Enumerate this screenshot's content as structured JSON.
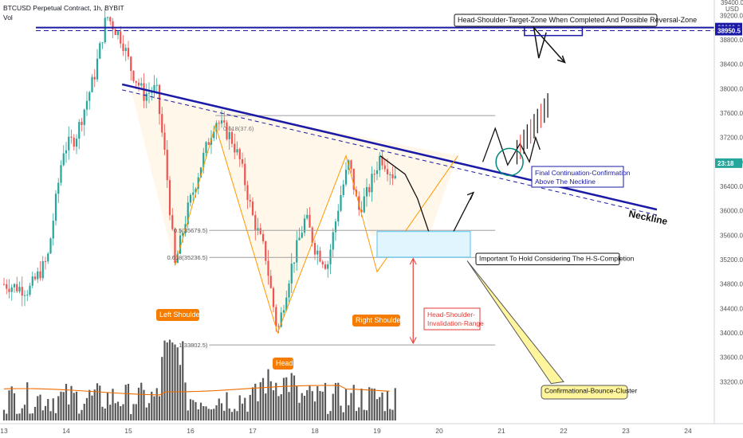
{
  "header": {
    "symbol_line": "BTCUSD Perpetual Contract, 1h, BYBIT",
    "vol_label": "Vol"
  },
  "y_axis": {
    "currency": "USD",
    "top_tick": "39400.0",
    "ticks": [
      "39200.0",
      "38800.0",
      "38400.0",
      "38000.0",
      "37600.0",
      "37200.0",
      "36800.0",
      "36400.0",
      "36000.0",
      "35600.0",
      "35200.0",
      "34800.0",
      "34400.0",
      "34000.0",
      "33600.0",
      "33200.0"
    ],
    "badges": [
      {
        "label": "39000.0",
        "bg": "#1a1aa6",
        "price": 39000
      },
      {
        "label": "38950.5",
        "bg": "#1a1aa6",
        "price": 38950.5
      },
      {
        "label": "23:18",
        "bg": "#26a69a",
        "price": 36780
      }
    ]
  },
  "x_axis": {
    "ticks": [
      "13",
      "14",
      "15",
      "16",
      "17",
      "18",
      "19",
      "20",
      "21",
      "22",
      "23",
      "24"
    ]
  },
  "fib_levels": [
    {
      "label": "0.5(35679.5)",
      "price": 35679.5
    },
    {
      "label": "0.618(35236.5)",
      "price": 35236.5
    },
    {
      "label": "1(33802.5)",
      "price": 33802.5
    }
  ],
  "annotations": {
    "target_zone": "Head-Shoulder-Target-Zone When Completed And Possible Reversal-Zone",
    "final_confirmation": [
      "Final Continuation-Confirmation",
      "Above The Neckline"
    ],
    "important_hold": "Important To Hold Considering The H-S-Completion",
    "invalidation": [
      "Head-Shoulder-",
      "Invalidation-Range"
    ],
    "bounce_cluster": "Confirmational-Bounce-Cluster",
    "neckline": "Neckline",
    "left_shoulder": "Left Shoulder",
    "head": "Head",
    "right_shoulder": "Right Shoulder",
    "small_price_label": "0.618(37.6)"
  },
  "colors": {
    "up": "#26a69a",
    "down": "#ef5350",
    "neckline": "#1a1aa6",
    "ma": "#ef6c00",
    "pattern_fill": "#fff3e0"
  },
  "chart_data": {
    "type": "candlestick",
    "title": "BTCUSD Perpetual Contract, 1h, BYBIT",
    "x_range_days": [
      12.85,
      24.5
    ],
    "ylim": [
      32800,
      39500
    ],
    "ohlc_daily_path": [
      {
        "day": 13.0,
        "price": 34800
      },
      {
        "day": 13.4,
        "price": 34700
      },
      {
        "day": 13.7,
        "price": 35200
      },
      {
        "day": 13.95,
        "price": 37000
      },
      {
        "day": 14.15,
        "price": 37200
      },
      {
        "day": 14.45,
        "price": 38200
      },
      {
        "day": 14.65,
        "price": 39200
      },
      {
        "day": 14.9,
        "price": 38800
      },
      {
        "day": 15.05,
        "price": 38300
      },
      {
        "day": 15.25,
        "price": 37900
      },
      {
        "day": 15.45,
        "price": 38000
      },
      {
        "day": 15.6,
        "price": 36800
      },
      {
        "day": 15.75,
        "price": 35100
      },
      {
        "day": 15.95,
        "price": 36000
      },
      {
        "day": 16.15,
        "price": 36700
      },
      {
        "day": 16.4,
        "price": 37500
      },
      {
        "day": 16.65,
        "price": 37200
      },
      {
        "day": 16.8,
        "price": 36800
      },
      {
        "day": 17.0,
        "price": 35900
      },
      {
        "day": 17.2,
        "price": 35300
      },
      {
        "day": 17.4,
        "price": 34000
      },
      {
        "day": 17.6,
        "price": 35000
      },
      {
        "day": 17.85,
        "price": 35900
      },
      {
        "day": 18.0,
        "price": 35400
      },
      {
        "day": 18.2,
        "price": 35100
      },
      {
        "day": 18.4,
        "price": 36200
      },
      {
        "day": 18.55,
        "price": 36800
      },
      {
        "day": 18.7,
        "price": 36000
      },
      {
        "day": 18.85,
        "price": 36300
      },
      {
        "day": 19.05,
        "price": 36900
      },
      {
        "day": 19.25,
        "price": 36600
      }
    ],
    "levels": {
      "target_high": 39000,
      "target_low": 38950.5,
      "current": 36780
    },
    "legend": "none",
    "grid": false
  }
}
